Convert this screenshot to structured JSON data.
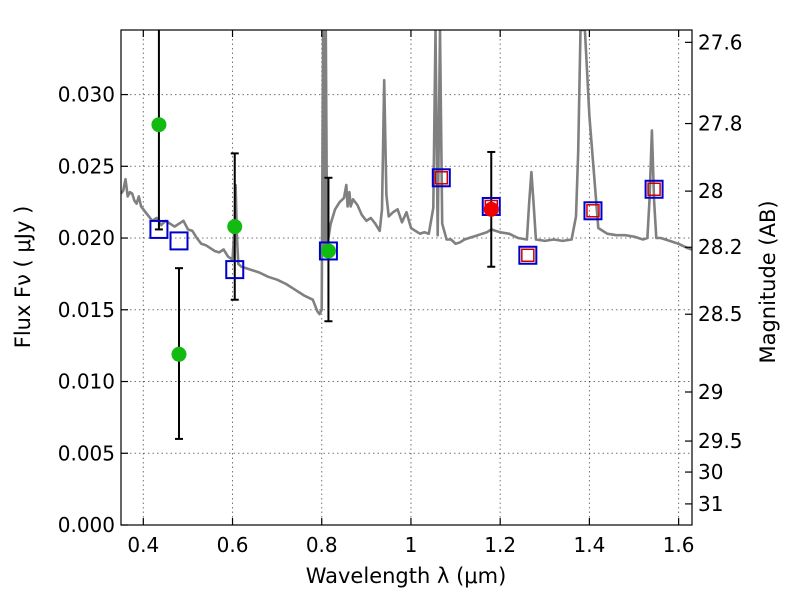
{
  "chart_data": {
    "type": "scatter",
    "xlabel": "Wavelength  λ (μm)",
    "ylabel": "Flux  Fν  ( μJy )",
    "y2label": "Magnitude (AB)",
    "xlim": [
      0.35,
      1.63
    ],
    "ylim": [
      0.0,
      0.0345
    ],
    "grid": true,
    "x_ticks": [
      0.4,
      0.6,
      0.8,
      1.0,
      1.2,
      1.4,
      1.6
    ],
    "x_tick_labels": [
      "0.4",
      "0.6",
      "0.8",
      "1",
      "1.2",
      "1.4",
      "1.6"
    ],
    "y_ticks": [
      0.0,
      0.005,
      0.01,
      0.015,
      0.02,
      0.025,
      0.03
    ],
    "y_tick_labels": [
      "0.000",
      "0.005",
      "0.010",
      "0.015",
      "0.020",
      "0.025",
      "0.030"
    ],
    "y2_ticks": [
      {
        "label": "27.6",
        "flux": 0.03364
      },
      {
        "label": "27.8",
        "flux": 0.02798
      },
      {
        "label": "28",
        "flux": 0.02327
      },
      {
        "label": "28.2",
        "flux": 0.01936
      },
      {
        "label": "28.5",
        "flux": 0.01469
      },
      {
        "label": "29",
        "flux": 0.00927
      },
      {
        "label": "29.5",
        "flux": 0.00585
      },
      {
        "label": "30",
        "flux": 0.00369
      },
      {
        "label": "31",
        "flux": 0.00147
      }
    ],
    "series": [
      {
        "kind": "line",
        "color": "#808080",
        "x": [
          0.35,
          0.355,
          0.36,
          0.365,
          0.37,
          0.375,
          0.38,
          0.385,
          0.39,
          0.395,
          0.4,
          0.405,
          0.41,
          0.42,
          0.43,
          0.44,
          0.45,
          0.46,
          0.47,
          0.48,
          0.49,
          0.5,
          0.51,
          0.52,
          0.53,
          0.54,
          0.55,
          0.56,
          0.57,
          0.58,
          0.59,
          0.6,
          0.605,
          0.607,
          0.61,
          0.613,
          0.62,
          0.64,
          0.66,
          0.68,
          0.7,
          0.72,
          0.74,
          0.76,
          0.78,
          0.79,
          0.795,
          0.8,
          0.803,
          0.806,
          0.809,
          0.812,
          0.815,
          0.82,
          0.83,
          0.84,
          0.85,
          0.855,
          0.858,
          0.862,
          0.865,
          0.87,
          0.88,
          0.89,
          0.9,
          0.91,
          0.92,
          0.93,
          0.935,
          0.94,
          0.945,
          0.95,
          0.96,
          0.97,
          0.98,
          0.99,
          1.0,
          1.01,
          1.02,
          1.03,
          1.04,
          1.05,
          1.055,
          1.06,
          1.065,
          1.07,
          1.08,
          1.09,
          1.1,
          1.11,
          1.12,
          1.13,
          1.14,
          1.15,
          1.16,
          1.17,
          1.18,
          1.19,
          1.2,
          1.22,
          1.24,
          1.26,
          1.265,
          1.27,
          1.275,
          1.28,
          1.3,
          1.32,
          1.34,
          1.36,
          1.37,
          1.375,
          1.38,
          1.39,
          1.4,
          1.42,
          1.44,
          1.46,
          1.48,
          1.5,
          1.52,
          1.53,
          1.535,
          1.54,
          1.545,
          1.55,
          1.56,
          1.58,
          1.6,
          1.62,
          1.63
        ],
        "y": [
          0.0231,
          0.0233,
          0.0241,
          0.0229,
          0.0232,
          0.0231,
          0.0226,
          0.0224,
          0.0229,
          0.0222,
          0.022,
          0.0218,
          0.0216,
          0.0212,
          0.0214,
          0.0209,
          0.0212,
          0.021,
          0.0208,
          0.021,
          0.0212,
          0.0206,
          0.0205,
          0.02,
          0.0196,
          0.0195,
          0.0193,
          0.0191,
          0.019,
          0.0192,
          0.0187,
          0.0185,
          0.021,
          0.0237,
          0.02,
          0.0182,
          0.018,
          0.0178,
          0.0176,
          0.0173,
          0.0171,
          0.0168,
          0.0164,
          0.016,
          0.0157,
          0.0149,
          0.0147,
          0.015,
          0.0345,
          0.019,
          0.0345,
          0.0195,
          0.02,
          0.021,
          0.022,
          0.0225,
          0.0228,
          0.0237,
          0.0222,
          0.0232,
          0.0222,
          0.0227,
          0.0223,
          0.0216,
          0.0212,
          0.0214,
          0.021,
          0.0205,
          0.022,
          0.031,
          0.023,
          0.0215,
          0.0218,
          0.022,
          0.0211,
          0.0218,
          0.0207,
          0.0205,
          0.0203,
          0.0204,
          0.0203,
          0.0221,
          0.0345,
          0.0202,
          0.0345,
          0.021,
          0.0199,
          0.0199,
          0.0196,
          0.0197,
          0.0199,
          0.02,
          0.0201,
          0.0202,
          0.0203,
          0.0204,
          0.0206,
          0.0205,
          0.0204,
          0.0203,
          0.02,
          0.0199,
          0.0225,
          0.0246,
          0.0224,
          0.0199,
          0.0198,
          0.0199,
          0.0198,
          0.0199,
          0.0215,
          0.026,
          0.0345,
          0.0345,
          0.0285,
          0.0207,
          0.0203,
          0.0202,
          0.0202,
          0.0201,
          0.0199,
          0.02,
          0.0228,
          0.0275,
          0.0226,
          0.02,
          0.02,
          0.0198,
          0.0196,
          0.0193,
          0.0192
        ]
      },
      {
        "kind": "open-square",
        "color": "#0000cc",
        "x": [
          0.435,
          0.48,
          0.605,
          0.815,
          1.068,
          1.18,
          1.262,
          1.408,
          1.545
        ],
        "y": [
          0.0206,
          0.0198,
          0.0178,
          0.0191,
          0.0242,
          0.0222,
          0.0188,
          0.0219,
          0.0234
        ]
      },
      {
        "kind": "open-square-small",
        "color": "#cc0000",
        "x": [
          1.068,
          1.18,
          1.262,
          1.408,
          1.545
        ],
        "y": [
          0.0242,
          0.0222,
          0.0188,
          0.0219,
          0.0234
        ]
      },
      {
        "kind": "filled-circle",
        "color": "#11bb11",
        "x": [
          0.435,
          0.48,
          0.605,
          0.815
        ],
        "y": [
          0.0279,
          0.0119,
          0.0208,
          0.0191
        ],
        "err_low": [
          0.0206,
          0.006,
          0.0157,
          0.0142
        ],
        "err_high": [
          0.0345,
          0.0179,
          0.0259,
          0.0242
        ]
      },
      {
        "kind": "filled-circle",
        "color": "#ee0000",
        "x": [
          1.18
        ],
        "y": [
          0.022
        ],
        "err_low": [
          0.018
        ],
        "err_high": [
          0.026
        ]
      }
    ]
  }
}
